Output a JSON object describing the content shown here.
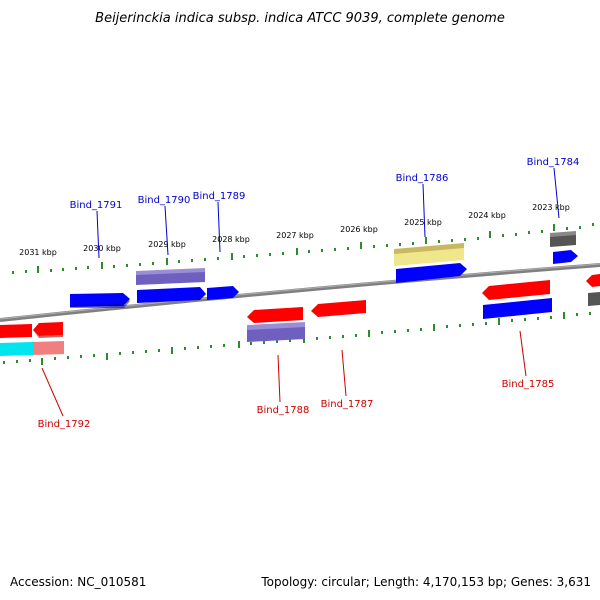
{
  "title": "Beijerinckia indica subsp. indica ATCC 9039, complete genome",
  "footer": {
    "accession": "Accession: NC_010581",
    "summary": "Topology: circular; Length: 4,170,153 bp; Genes: 3,631"
  },
  "colors": {
    "backbone": "#808080",
    "tick": "#2e8b2e",
    "forward_label": "#0000cc",
    "reverse_label": "#cc0000",
    "blue_gene": "#0000ff",
    "red_gene": "#ff0000",
    "purple_gene": "#6f5fbf",
    "khaki_gene": "#f0e68c",
    "gray_gene": "#555555",
    "cyan_gene": "#00e5ee",
    "pink_gene": "#f08080"
  },
  "kbp_labels": [
    {
      "text": "2031 kbp"
    },
    {
      "text": "2030 kbp"
    },
    {
      "text": "2029 kbp"
    },
    {
      "text": "2028 kbp"
    },
    {
      "text": "2027 kbp"
    },
    {
      "text": "2026 kbp"
    },
    {
      "text": "2025 kbp"
    },
    {
      "text": "2024 kbp"
    },
    {
      "text": "2023 kbp"
    }
  ],
  "gene_labels": {
    "forward": [
      {
        "text": "Bind_1791"
      },
      {
        "text": "Bind_1790"
      },
      {
        "text": "Bind_1789"
      },
      {
        "text": "Bind_1786"
      },
      {
        "text": "Bind_1784"
      }
    ],
    "reverse": [
      {
        "text": "Bind_1792"
      },
      {
        "text": "Bind_1788"
      },
      {
        "text": "Bind_1787"
      },
      {
        "text": "Bind_1785"
      }
    ]
  }
}
